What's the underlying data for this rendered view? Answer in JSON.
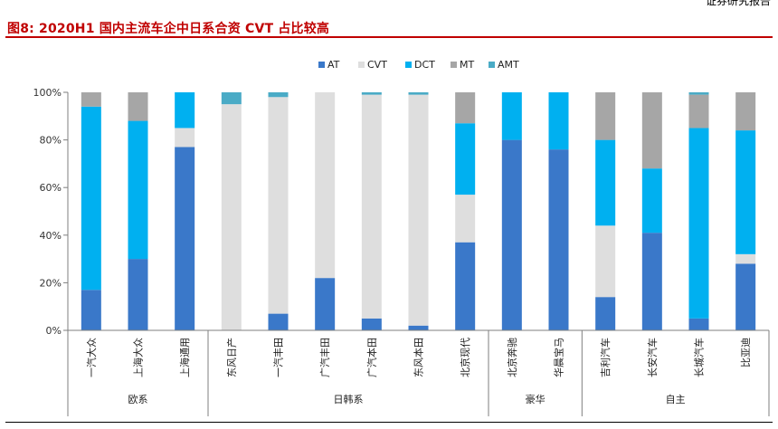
{
  "header": {
    "top_text": "证券研究报告",
    "title": "图8:  2020H1 国内主流车企中日系合资 CVT 占比较高"
  },
  "chart_data": {
    "type": "bar",
    "stacked": true,
    "percent": true,
    "title": "",
    "xlabel": "",
    "ylabel": "",
    "ylim": [
      0,
      100
    ],
    "y_ticks": [
      "0%",
      "20%",
      "40%",
      "60%",
      "80%",
      "100%"
    ],
    "grid": false,
    "legend_position": "top",
    "categories": [
      "一汽大众",
      "上海大众",
      "上海通用",
      "东风日产",
      "一汽丰田",
      "广汽丰田",
      "广汽本田",
      "东风本田",
      "北京现代",
      "北京奔驰",
      "华晨宝马",
      "吉利汽车",
      "长安汽车",
      "长城汽车",
      "比亚迪"
    ],
    "groups": [
      {
        "label": "欧系",
        "start": 0,
        "end": 2
      },
      {
        "label": "日韩系",
        "start": 3,
        "end": 8
      },
      {
        "label": "豪华",
        "start": 9,
        "end": 10
      },
      {
        "label": "自主",
        "start": 11,
        "end": 14
      }
    ],
    "series": [
      {
        "name": "AT",
        "color": "#3a78c9",
        "values": [
          17,
          30,
          77,
          0,
          7,
          22,
          5,
          2,
          37,
          80,
          76,
          14,
          41,
          5,
          28
        ]
      },
      {
        "name": "CVT",
        "color": "#dedede",
        "values": [
          0,
          0,
          8,
          95,
          91,
          78,
          94,
          97,
          20,
          0,
          0,
          30,
          0,
          0,
          4
        ]
      },
      {
        "name": "DCT",
        "color": "#00b0f0",
        "values": [
          77,
          58,
          15,
          0,
          0,
          0,
          0,
          0,
          30,
          20,
          24,
          36,
          27,
          80,
          52
        ]
      },
      {
        "name": "MT",
        "color": "#a6a6a6",
        "values": [
          6,
          12,
          0,
          0,
          0,
          0,
          0,
          0,
          13,
          0,
          0,
          20,
          32,
          14,
          16
        ]
      },
      {
        "name": "AMT",
        "color": "#4aabc6",
        "values": [
          0,
          0,
          0,
          5,
          2,
          0,
          1,
          1,
          0,
          0,
          0,
          0,
          0,
          1,
          0
        ]
      }
    ]
  }
}
